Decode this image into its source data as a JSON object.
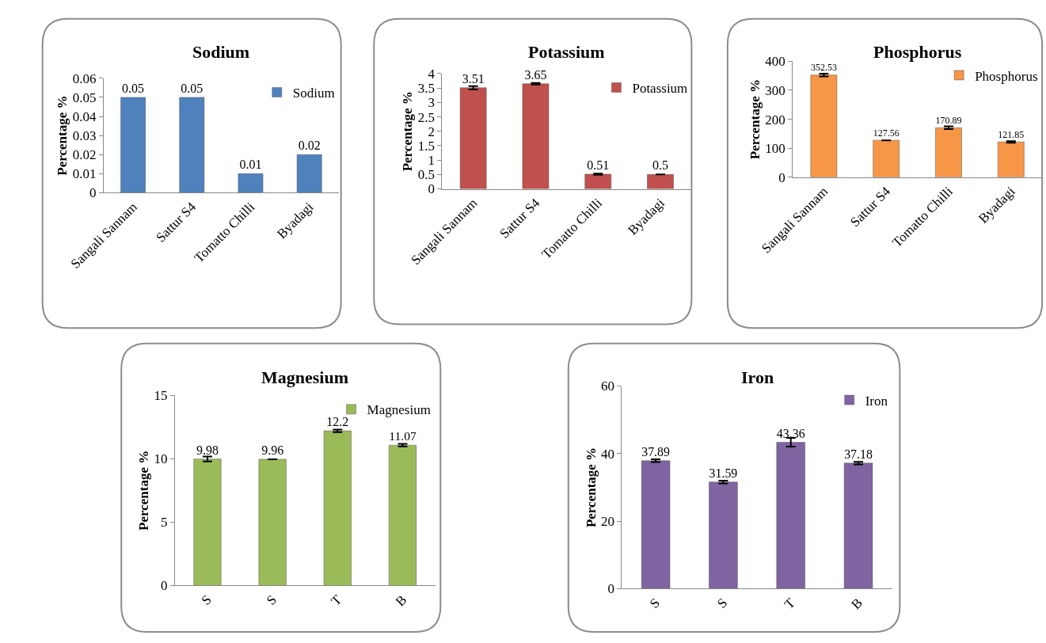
{
  "chart_data": [
    {
      "type": "bar",
      "title": "Sodium",
      "ylabel": "Percentage %",
      "categories": [
        "Sangali Sannam",
        "Sattur S4",
        "Tomatto Chilli",
        "Byadagi"
      ],
      "series": [
        {
          "name": "Sodium",
          "color": "#4f81bd",
          "values": [
            0.05,
            0.05,
            0.01,
            0.02
          ]
        }
      ],
      "ylim": [
        0,
        0.06
      ],
      "yticks": [
        0,
        0.01,
        0.02,
        0.03,
        0.04,
        0.05,
        0.06
      ],
      "data_labels": true,
      "legend": "top right"
    },
    {
      "type": "bar",
      "title": "Potassium",
      "ylabel": "Percentage %",
      "categories": [
        "Sangali Sannam",
        "Sattur S4",
        "Tomatto Chilli",
        "Byadagi"
      ],
      "series": [
        {
          "name": "Potassium",
          "color": "#c0504d",
          "values": [
            3.51,
            3.65,
            0.51,
            0.5
          ],
          "errors": [
            0.06,
            0.03,
            0.02,
            null
          ]
        }
      ],
      "ylim": [
        0,
        4
      ],
      "yticks": [
        0,
        0.5,
        1,
        1.5,
        2,
        2.5,
        3,
        3.5,
        4
      ],
      "data_labels": true,
      "legend": "top right"
    },
    {
      "type": "bar",
      "title": "Phosphorus",
      "ylabel": "Percentage %",
      "categories": [
        "Sangali Sannam",
        "Sattur S4",
        "Tomatto Chilli",
        "Byadagi"
      ],
      "series": [
        {
          "name": "Phosphorus",
          "color": "#f79646",
          "values": [
            352.53,
            127.56,
            170.89,
            121.85
          ],
          "errors": [
            5,
            null,
            5,
            3
          ]
        }
      ],
      "ylim": [
        0,
        400
      ],
      "yticks": [
        0,
        100,
        200,
        300,
        400
      ],
      "data_labels": true,
      "legend": "top right"
    },
    {
      "type": "bar",
      "title": "Magnesium",
      "ylabel": "Percentage %",
      "categories": [
        "S",
        "S",
        "T",
        "B"
      ],
      "series": [
        {
          "name": "Magnesium",
          "color": "#9bbb59",
          "values": [
            9.98,
            9.96,
            12.2,
            11.07
          ],
          "errors": [
            0.2,
            null,
            0.1,
            0.1
          ]
        }
      ],
      "ylim": [
        0,
        15
      ],
      "yticks": [
        0,
        5,
        10,
        15
      ],
      "data_labels": true,
      "legend": "top right"
    },
    {
      "type": "bar",
      "title": "Iron",
      "ylabel": "Percentage %",
      "categories": [
        "S",
        "S",
        "T",
        "B"
      ],
      "series": [
        {
          "name": "Iron",
          "color": "#8064a2",
          "values": [
            37.89,
            31.59,
            43.36,
            37.18
          ],
          "errors": [
            0.4,
            0.4,
            1.3,
            0.4
          ]
        }
      ],
      "ylim": [
        0,
        60
      ],
      "yticks": [
        0,
        20,
        40,
        60
      ],
      "data_labels": true,
      "legend": "top right"
    }
  ]
}
